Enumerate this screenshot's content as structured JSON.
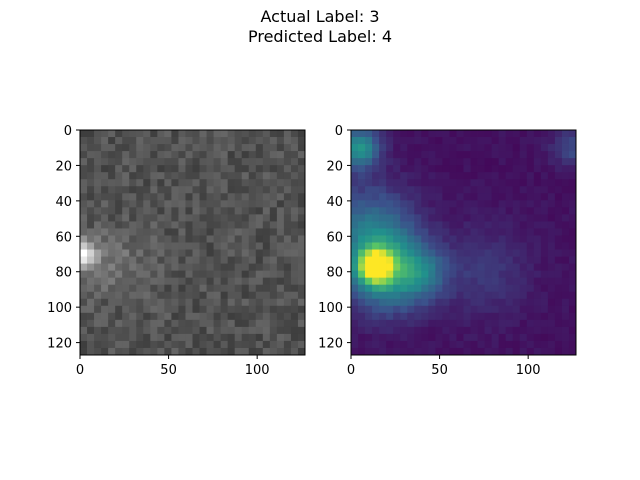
{
  "figure": {
    "title_line_1": "Actual Label: 3",
    "title_line_2": "Predicted Label: 4"
  },
  "chart_data": [
    {
      "type": "heatmap",
      "colormap": "gray",
      "description_source": "input image, 128x128 pixels",
      "xlim": [
        0,
        127
      ],
      "ylim": [
        127,
        0
      ],
      "x_ticks": [
        "0",
        "50",
        "100"
      ],
      "y_ticks": [
        "0",
        "20",
        "40",
        "60",
        "80",
        "100",
        "120"
      ],
      "x_tick_values": [
        0,
        50,
        100
      ],
      "y_tick_values": [
        0,
        20,
        40,
        60,
        80,
        100,
        120
      ],
      "background_level": 0.32,
      "hotspots": [
        {
          "x": 2,
          "y": 70,
          "sigma": 5,
          "amplitude": 0.65
        },
        {
          "x": 20,
          "y": 75,
          "sigma": 14,
          "amplitude": 0.12
        }
      ]
    },
    {
      "type": "heatmap",
      "colormap": "viridis",
      "xlim": [
        0,
        127
      ],
      "ylim": [
        127,
        0
      ],
      "x_ticks": [
        "0",
        "50",
        "100"
      ],
      "y_ticks": [
        "0",
        "20",
        "40",
        "60",
        "80",
        "100",
        "120"
      ],
      "x_tick_values": [
        0,
        50,
        100
      ],
      "y_tick_values": [
        0,
        20,
        40,
        60,
        80,
        100,
        120
      ],
      "background_level": 0.05,
      "hotspots": [
        {
          "x": 14,
          "y": 77,
          "sigma": 6,
          "amplitude": 0.95
        },
        {
          "x": 20,
          "y": 80,
          "sigma": 16,
          "amplitude": 0.45
        },
        {
          "x": 40,
          "y": 81,
          "sigma": 10,
          "amplitude": 0.22
        },
        {
          "x": 5,
          "y": 10,
          "sigma": 8,
          "amplitude": 0.45
        },
        {
          "x": 10,
          "y": 55,
          "sigma": 18,
          "amplitude": 0.28
        },
        {
          "x": 75,
          "y": 80,
          "sigma": 18,
          "amplitude": 0.12
        },
        {
          "x": 125,
          "y": 10,
          "sigma": 8,
          "amplitude": 0.18
        }
      ]
    }
  ]
}
